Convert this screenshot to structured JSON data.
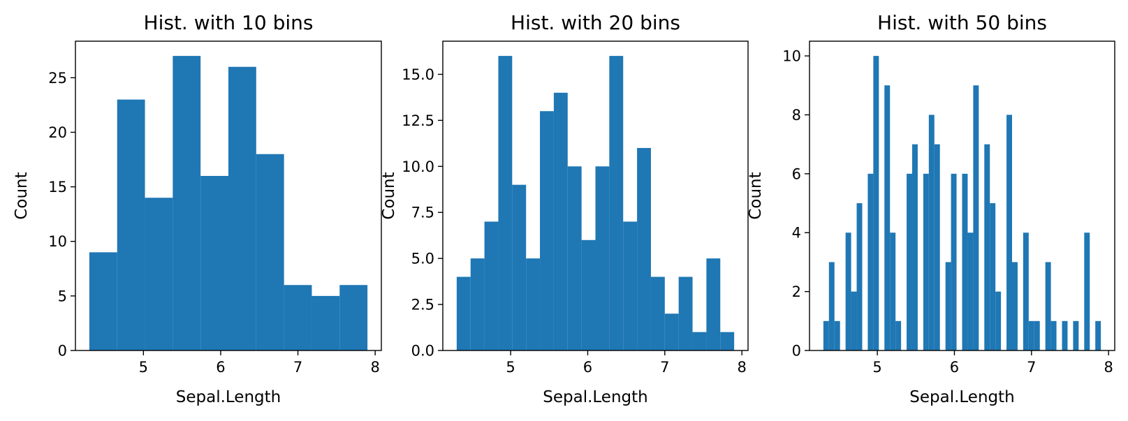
{
  "chart_data": [
    {
      "type": "bar",
      "title": "Hist. with 10 bins",
      "xlabel": "Sepal.Length",
      "ylabel": "Count",
      "bin_range": [
        4.3,
        7.9
      ],
      "values": [
        9,
        23,
        14,
        27,
        16,
        26,
        18,
        6,
        5,
        6
      ],
      "xlim": [
        4.12,
        8.08
      ],
      "ylim": [
        0,
        28.35
      ],
      "xticks": [
        5,
        6,
        7,
        8
      ],
      "xtick_labels": [
        "5",
        "6",
        "7",
        "8"
      ],
      "yticks": [
        0,
        5,
        10,
        15,
        20,
        25
      ],
      "ytick_labels": [
        "0",
        "5",
        "10",
        "15",
        "20",
        "25"
      ],
      "bar_color": "#1f77b4"
    },
    {
      "type": "bar",
      "title": "Hist. with 20 bins",
      "xlabel": "Sepal.Length",
      "ylabel": "Count",
      "bin_range": [
        4.3,
        7.9
      ],
      "values": [
        4,
        5,
        7,
        16,
        9,
        5,
        13,
        14,
        10,
        6,
        10,
        16,
        7,
        11,
        4,
        2,
        4,
        1,
        5,
        1
      ],
      "xlim": [
        4.12,
        8.08
      ],
      "ylim": [
        0,
        16.8
      ],
      "xticks": [
        5,
        6,
        7,
        8
      ],
      "xtick_labels": [
        "5",
        "6",
        "7",
        "8"
      ],
      "yticks": [
        0,
        2.5,
        5,
        7.5,
        10,
        12.5,
        15
      ],
      "ytick_labels": [
        "0.0",
        "2.5",
        "5.0",
        "7.5",
        "10.0",
        "12.5",
        "15.0"
      ],
      "bar_color": "#1f77b4"
    },
    {
      "type": "bar",
      "title": "Hist. with 50 bins",
      "xlabel": "Sepal.Length",
      "ylabel": "Count",
      "bin_range": [
        4.3,
        7.9
      ],
      "values": [
        1,
        3,
        1,
        0,
        4,
        2,
        5,
        0,
        6,
        10,
        0,
        9,
        4,
        1,
        0,
        6,
        7,
        0,
        6,
        8,
        7,
        0,
        3,
        6,
        0,
        6,
        4,
        9,
        0,
        7,
        5,
        2,
        0,
        8,
        3,
        0,
        4,
        1,
        1,
        0,
        3,
        1,
        0,
        1,
        0,
        1,
        0,
        4,
        0,
        1
      ],
      "xlim": [
        4.12,
        8.08
      ],
      "ylim": [
        0,
        10.5
      ],
      "xticks": [
        5,
        6,
        7,
        8
      ],
      "xtick_labels": [
        "5",
        "6",
        "7",
        "8"
      ],
      "yticks": [
        0,
        2,
        4,
        6,
        8,
        10
      ],
      "ytick_labels": [
        "0",
        "2",
        "4",
        "6",
        "8",
        "10"
      ],
      "bar_color": "#1f77b4"
    }
  ]
}
